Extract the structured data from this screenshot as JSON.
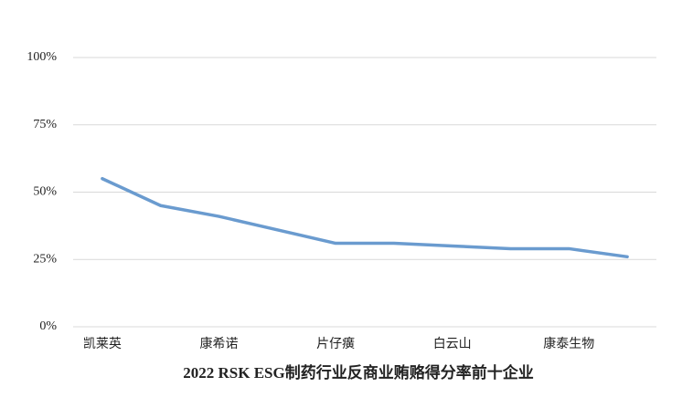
{
  "chart_data": {
    "type": "line",
    "title": "2022 RSK ESG制药行业反商业贿赂得分率前十企业",
    "categories": [
      "凯莱英",
      null,
      "康希诺",
      null,
      "片仔癀",
      null,
      "白云山",
      null,
      "康泰生物",
      null
    ],
    "values": [
      55,
      45,
      41,
      36,
      31,
      31,
      30,
      29,
      29,
      26
    ],
    "color": "#6a9bcf",
    "ylim": [
      0,
      100
    ],
    "yticks": [
      {
        "value": 0,
        "label": "0%"
      },
      {
        "value": 25,
        "label": "25%"
      },
      {
        "value": 50,
        "label": "50%"
      },
      {
        "value": 75,
        "label": "75%"
      },
      {
        "value": 100,
        "label": "100%"
      }
    ],
    "grid": true
  }
}
